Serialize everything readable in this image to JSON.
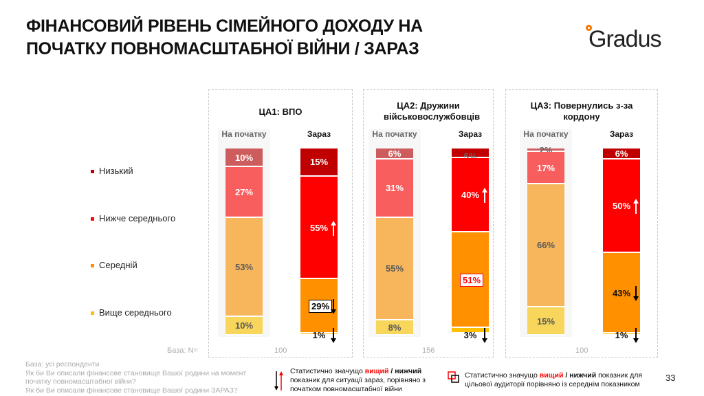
{
  "title_line1": "ФІНАНСОВИЙ РІВЕНЬ СІМЕЙНОГО ДОХОДУ НА",
  "title_line2": "ПОЧАТКУ ПОВНОМАСШТАБНОЇ ВІЙНИ / ЗАРАЗ",
  "logo": "Gradus",
  "page_number": "33",
  "base_label": "База: N=",
  "footnote": [
    "База: усі респонденти",
    "Як би Ви описали фінансове становище Вашої родини на момент початку повномасштабної війни?",
    "Як би Ви описали фінансове становище Вашої родини ЗАРАЗ?"
  ],
  "note_arrows": {
    "p1": "Статистично значущо ",
    "high": "вищий",
    "sep": " / ",
    "low": "нижчий",
    "p2": " показник для ситуації зараз, порівняно з початком повномасштабної війни"
  },
  "note_boxes": {
    "p1": "Статистично значущо ",
    "high": "вищий",
    "sep": " / ",
    "low": "нижчий",
    "p2": " показник для цільової аудиторії порівняно із середнім показником"
  },
  "chart_data": {
    "type": "bar",
    "stacked": true,
    "categories": [
      "Низький",
      "Нижче середнього",
      "Середній",
      "Вище середнього"
    ],
    "colors": {
      "start": [
        "#cd5c5c",
        "#f95e5e",
        "#f8b65c",
        "#f8d65c"
      ],
      "now": [
        "#c00000",
        "#ff0000",
        "#ff9100",
        "#ffc000"
      ]
    },
    "groups": [
      {
        "title": "ЦА1: ВПО",
        "n": "100",
        "bars": [
          {
            "label": "На початку",
            "values": [
              10,
              27,
              53,
              10
            ]
          },
          {
            "label": "Зараз",
            "values": [
              15,
              55,
              29,
              1
            ],
            "arrows": [
              null,
              "up",
              "down",
              "down"
            ],
            "boxes": [
              null,
              null,
              "black",
              null
            ]
          }
        ]
      },
      {
        "title": "ЦА2: Дружини військовослужбовців",
        "n": "156",
        "bars": [
          {
            "label": "На початку",
            "values": [
              6,
              31,
              55,
              8
            ]
          },
          {
            "label": "Зараз",
            "values": [
              5,
              40,
              51,
              3
            ],
            "arrows": [
              null,
              "up",
              null,
              "down"
            ],
            "boxes": [
              null,
              null,
              "red",
              null
            ]
          }
        ]
      },
      {
        "title": "ЦА3: Повернулись з-за кордону",
        "n": "100",
        "bars": [
          {
            "label": "На початку",
            "values": [
              2,
              17,
              66,
              15
            ]
          },
          {
            "label": "Зараз",
            "values": [
              6,
              50,
              43,
              1
            ],
            "arrows": [
              null,
              "up",
              "down",
              "down"
            ],
            "boxes": [
              null,
              null,
              null,
              null
            ]
          }
        ]
      }
    ]
  }
}
